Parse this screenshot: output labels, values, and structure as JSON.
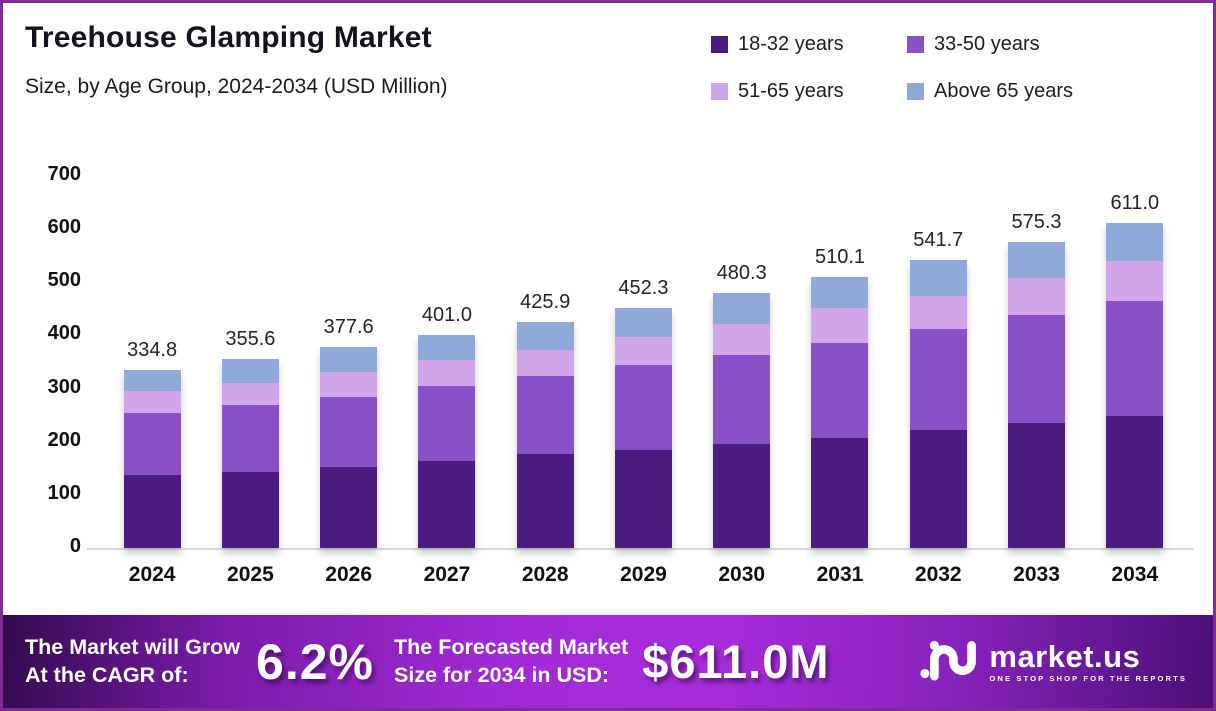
{
  "header": {
    "title": "Treehouse Glamping Market",
    "subtitle": "Size, by Age Group, 2024-2034 (USD Million)"
  },
  "colors": {
    "border": "#7C2C92",
    "series_18_32": "#4A1C80",
    "series_33_50": "#8A50C8",
    "series_51_65": "#CFA6E9",
    "series_above_65": "#8FA9DB",
    "baseline": "#d9d9d9",
    "footer_gradient_start": "#330A4E",
    "footer_gradient_mid": "#A82CDB",
    "footer_gradient_end": "#4C1078"
  },
  "chart_data": {
    "type": "bar",
    "stacked": true,
    "title": "Treehouse Glamping Market Size, by Age Group, 2024-2034 (USD Million)",
    "xlabel": "",
    "ylabel": "",
    "ylim": [
      0,
      700
    ],
    "yticks": [
      "0",
      "100",
      "200",
      "300",
      "400",
      "500",
      "600",
      "700"
    ],
    "grid": false,
    "legend_position": "top-right",
    "categories": [
      "2024",
      "2025",
      "2026",
      "2027",
      "2028",
      "2029",
      "2030",
      "2031",
      "2032",
      "2033",
      "2034"
    ],
    "series": [
      {
        "name": "18-32 years",
        "color": "#4A1C80",
        "values": [
          137.0,
          143.0,
          152.0,
          164.0,
          177.0,
          185.0,
          196.0,
          207.0,
          223.0,
          236.0,
          249.0
        ]
      },
      {
        "name": "33-50 years",
        "color": "#8A50C8",
        "values": [
          118.0,
          127.0,
          133.0,
          140.0,
          146.0,
          159.0,
          167.0,
          179.0,
          190.0,
          202.0,
          215.0
        ]
      },
      {
        "name": "51-65 years",
        "color": "#CFA6E9",
        "values": [
          39.8,
          40.6,
          46.0,
          50.0,
          50.0,
          53.0,
          59.0,
          65.0,
          62.0,
          70.0,
          76.0
        ]
      },
      {
        "name": "Above 65 years",
        "color": "#8FA9DB",
        "values": [
          40.0,
          45.0,
          46.6,
          47.0,
          52.9,
          55.3,
          58.3,
          59.1,
          66.7,
          67.3,
          71.0
        ]
      }
    ],
    "totals": [
      334.8,
      355.6,
      377.6,
      401.0,
      425.9,
      452.3,
      480.3,
      510.1,
      541.7,
      575.3,
      611.0
    ],
    "total_labels": [
      "334.8",
      "355.6",
      "377.6",
      "401.0",
      "425.9",
      "452.3",
      "480.3",
      "510.1",
      "541.7",
      "575.3",
      "611.0"
    ]
  },
  "legend": [
    {
      "label": "18-32 years",
      "color": "#4A1C80"
    },
    {
      "label": "33-50 years",
      "color": "#8A50C8"
    },
    {
      "label": "51-65 years",
      "color": "#CFA6E9"
    },
    {
      "label": "Above 65 years",
      "color": "#8FA9DB"
    }
  ],
  "footer": {
    "cagr_label_line1": "The Market will Grow",
    "cagr_label_line2": "At the CAGR of:",
    "cagr_value": "6.2%",
    "forecast_label_line1": "The Forecasted Market",
    "forecast_label_line2": "Size for 2034 in USD:",
    "forecast_value": "$611.0M",
    "brand": {
      "name": "market.us",
      "tagline": "ONE STOP SHOP FOR THE REPORTS"
    }
  }
}
